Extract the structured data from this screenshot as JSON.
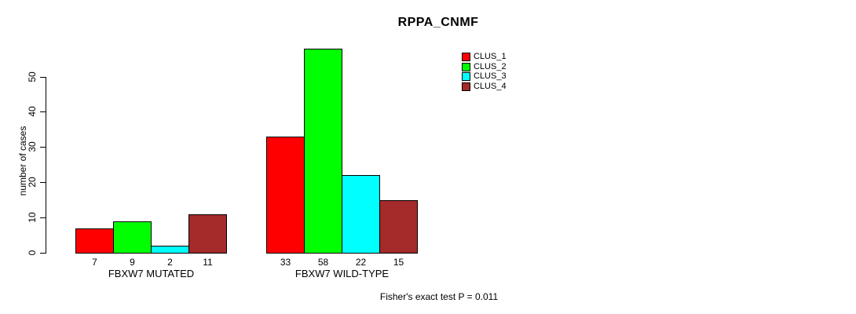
{
  "chart_data": {
    "type": "bar",
    "title": "RPPA_CNMF",
    "ylabel": "number of cases",
    "xlabel": "",
    "categories": [
      "FBXW7 MUTATED",
      "FBXW7 WILD-TYPE"
    ],
    "series": [
      {
        "name": "CLUS_1",
        "color": "#ff0000",
        "values": [
          7,
          33
        ]
      },
      {
        "name": "CLUS_2",
        "color": "#00ff00",
        "values": [
          9,
          58
        ]
      },
      {
        "name": "CLUS_3",
        "color": "#00ffff",
        "values": [
          2,
          22
        ]
      },
      {
        "name": "CLUS_4",
        "color": "#a52a2a",
        "values": [
          11,
          15
        ]
      }
    ],
    "bar_value_labels": [
      [
        "7",
        "9",
        "2",
        "11"
      ],
      [
        "33",
        "58",
        "22",
        "15"
      ]
    ],
    "yticks": [
      0,
      10,
      20,
      30,
      40,
      50
    ],
    "ylim": [
      0,
      58
    ],
    "grid": false,
    "legend_position": "top-right",
    "legend_entries": [
      "CLUS_1",
      "CLUS_2",
      "CLUS_3",
      "CLUS_4"
    ],
    "annotation": "Fisher's exact test P = 0.011",
    "colors": {
      "axis": "#000000",
      "text": "#000000",
      "background": "#ffffff"
    }
  }
}
